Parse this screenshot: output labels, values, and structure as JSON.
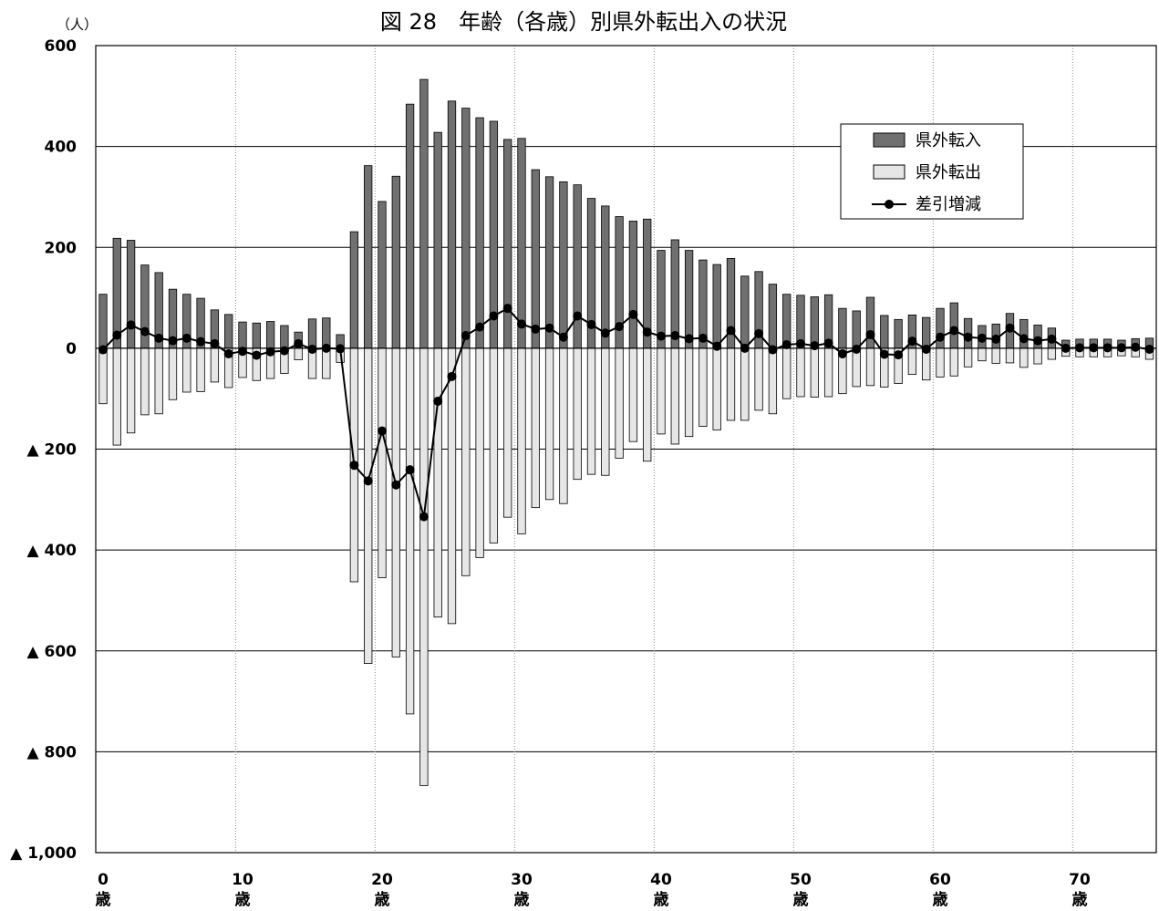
{
  "chart_data": {
    "type": "bar",
    "title": "図 28　年齢（各歳）別県外転出入の状況",
    "unit_label": "（人）",
    "ylim": [
      -1000,
      600
    ],
    "y_ticks": [
      {
        "value": 600,
        "label": "600"
      },
      {
        "value": 400,
        "label": "400"
      },
      {
        "value": 200,
        "label": "200"
      },
      {
        "value": 0,
        "label": "0"
      },
      {
        "value": -200,
        "label": "▲ 200"
      },
      {
        "value": -400,
        "label": "▲ 400"
      },
      {
        "value": -600,
        "label": "▲ 600"
      },
      {
        "value": -800,
        "label": "▲ 800"
      },
      {
        "value": -1000,
        "label": "▲ 1,000"
      }
    ],
    "x_ticks": [
      {
        "age": 0,
        "label": "0",
        "unit": "歳"
      },
      {
        "age": 10,
        "label": "10",
        "unit": "歳"
      },
      {
        "age": 20,
        "label": "20",
        "unit": "歳"
      },
      {
        "age": 30,
        "label": "30",
        "unit": "歳"
      },
      {
        "age": 40,
        "label": "40",
        "unit": "歳"
      },
      {
        "age": 50,
        "label": "50",
        "unit": "歳"
      },
      {
        "age": 60,
        "label": "60",
        "unit": "歳"
      },
      {
        "age": 70,
        "label": "70",
        "unit": "歳"
      }
    ],
    "grid": true,
    "legend_position": "top-right",
    "colors": {
      "in": "#707070",
      "out": "#e6e6e6",
      "net": "#000000"
    },
    "series": [
      {
        "name": "県外転入",
        "kind": "bar",
        "values": [
          107,
          218,
          214,
          165,
          150,
          117,
          107,
          99,
          76,
          67,
          52,
          50,
          53,
          45,
          32,
          58,
          60,
          27,
          231,
          362,
          291,
          341,
          484,
          533,
          428,
          490,
          476,
          457,
          450,
          414,
          416,
          354,
          340,
          330,
          324,
          297,
          282,
          261,
          252,
          256,
          194,
          215,
          194,
          175,
          166,
          178,
          143,
          152,
          127,
          107,
          105,
          102,
          106,
          79,
          74,
          101,
          65,
          57,
          66,
          61,
          79,
          90,
          59,
          45,
          48,
          69,
          57,
          46,
          40,
          16,
          18,
          18,
          18,
          16,
          19,
          20
        ]
      },
      {
        "name": "県外転出",
        "kind": "bar",
        "values": [
          -110,
          -192,
          -168,
          -132,
          -130,
          -102,
          -87,
          -86,
          -67,
          -78,
          -58,
          -64,
          -60,
          -50,
          -23,
          -60,
          -60,
          -28,
          -463,
          -625,
          -455,
          -612,
          -725,
          -867,
          -533,
          -546,
          -451,
          -415,
          -386,
          -335,
          -368,
          -316,
          -300,
          -308,
          -260,
          -250,
          -252,
          -218,
          -185,
          -224,
          -170,
          -190,
          -175,
          -155,
          -162,
          -143,
          -143,
          -123,
          -130,
          -100,
          -96,
          -97,
          -96,
          -90,
          -76,
          -74,
          -77,
          -70,
          -52,
          -63,
          -57,
          -55,
          -37,
          -25,
          -30,
          -29,
          -38,
          -31,
          -22,
          -16,
          -17,
          -17,
          -17,
          -15,
          -17,
          -22
        ]
      },
      {
        "name": "差引増減",
        "kind": "line",
        "values": [
          -3,
          26,
          46,
          33,
          20,
          15,
          20,
          13,
          9,
          -11,
          -6,
          -14,
          -7,
          -5,
          9,
          -2,
          0,
          -1,
          -232,
          -263,
          -164,
          -271,
          -241,
          -334,
          -105,
          -56,
          25,
          42,
          64,
          79,
          48,
          38,
          40,
          22,
          64,
          47,
          30,
          43,
          67,
          32,
          24,
          25,
          19,
          20,
          4,
          35,
          0,
          29,
          -3,
          7,
          9,
          5,
          10,
          -11,
          -2,
          27,
          -12,
          -13,
          14,
          -2,
          22,
          35,
          22,
          20,
          18,
          40,
          19,
          15,
          18,
          0,
          1,
          1,
          1,
          1,
          2,
          -2
        ]
      }
    ]
  }
}
